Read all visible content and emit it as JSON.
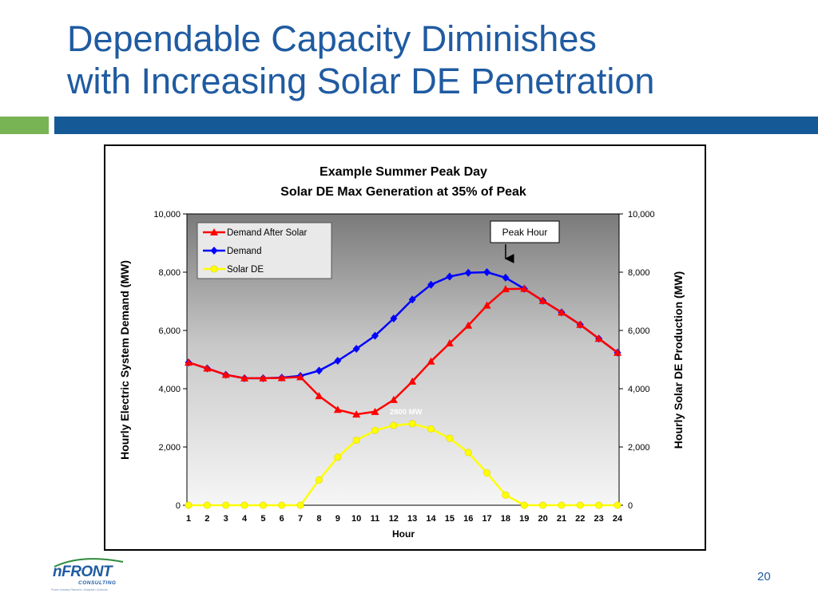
{
  "slide": {
    "title_line1": "Dependable Capacity Diminishes",
    "title_line2": "with Increasing Solar DE Penetration",
    "page_number": "20",
    "logo_text": "nFRONT",
    "logo_subtext": "CONSULTING",
    "logo_tagline": "Power Industry Planners • Analysts • Advisors",
    "colors": {
      "title": "#1f5ba1",
      "accent_green": "#78b354",
      "accent_blue": "#155a96"
    }
  },
  "chart_data": {
    "type": "line",
    "title": [
      "Example Summer Peak Day",
      "Solar DE Max Generation at 35% of Peak"
    ],
    "xlabel": "Hour",
    "ylabel_left": "Hourly Electric System Demand (MW)",
    "ylabel_right": "Hourly Solar DE Production (MW)",
    "x": [
      1,
      2,
      3,
      4,
      5,
      6,
      7,
      8,
      9,
      10,
      11,
      12,
      13,
      14,
      15,
      16,
      17,
      18,
      19,
      20,
      21,
      22,
      23,
      24
    ],
    "ylim": [
      0,
      10000
    ],
    "y_ticks": [
      0,
      2000,
      4000,
      6000,
      8000,
      10000
    ],
    "y_tick_labels": [
      "0",
      "2,000",
      "4,000",
      "6,000",
      "8,000",
      "10,000"
    ],
    "series": [
      {
        "name": "Demand After Solar",
        "color": "#ff0000",
        "marker": "triangle",
        "values": [
          4900,
          4700,
          4480,
          4360,
          4360,
          4370,
          4400,
          3750,
          3280,
          3120,
          3210,
          3620,
          4250,
          4940,
          5560,
          6170,
          6860,
          7420,
          7430,
          7020,
          6620,
          6200,
          5720,
          5240
        ]
      },
      {
        "name": "Demand",
        "color": "#0000ff",
        "marker": "diamond",
        "values": [
          4900,
          4700,
          4480,
          4360,
          4360,
          4380,
          4440,
          4620,
          4960,
          5370,
          5820,
          6410,
          7060,
          7570,
          7850,
          7980,
          8000,
          7810,
          7430,
          7020,
          6620,
          6200,
          5720,
          5240
        ]
      },
      {
        "name": "Solar DE",
        "color": "#ffff00",
        "marker": "circle",
        "values": [
          0,
          0,
          0,
          0,
          0,
          0,
          0,
          870,
          1650,
          2230,
          2570,
          2740,
          2800,
          2620,
          2300,
          1810,
          1110,
          350,
          0,
          0,
          0,
          0,
          0,
          0
        ]
      }
    ],
    "annotations": [
      {
        "text": "Peak Hour",
        "x": 18,
        "arrow": true
      },
      {
        "text": "2800 MW",
        "x": 13,
        "y": 2800
      }
    ],
    "legend_position": "top-left",
    "plot_background": "gradient gray",
    "grid": false
  }
}
